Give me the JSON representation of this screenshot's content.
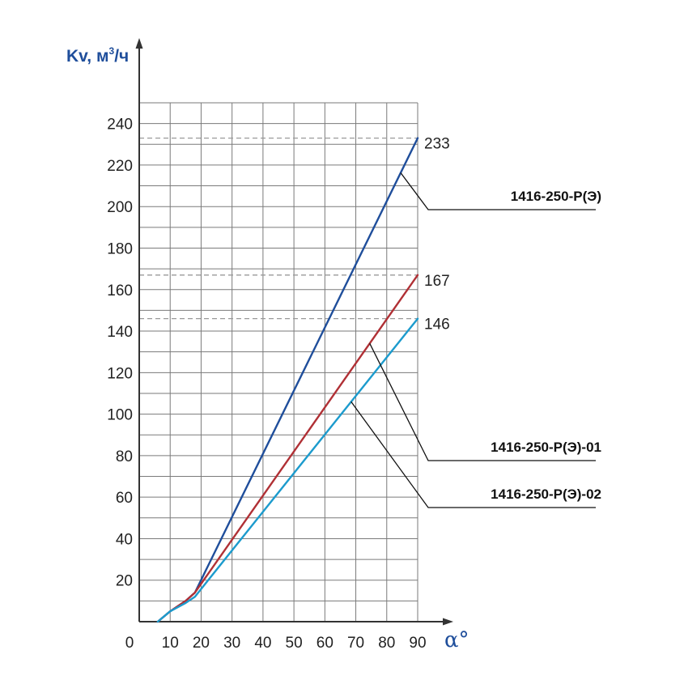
{
  "chart_data": {
    "type": "line",
    "ylabel": {
      "main": "Kv, м",
      "sup": "3",
      "tail": "/ч"
    },
    "xlabel": "α°",
    "x_origin_label": "0",
    "xlim": [
      0,
      90
    ],
    "ylim": [
      0,
      250
    ],
    "grid": true,
    "x_ticks": [
      10,
      20,
      30,
      40,
      50,
      60,
      70,
      80,
      90
    ],
    "y_ticks": [
      20,
      40,
      60,
      80,
      100,
      120,
      140,
      160,
      180,
      200,
      220,
      240
    ],
    "series": [
      {
        "name": "1416-250-Р(Э)",
        "color": "#1f4e9b",
        "end_label": "233",
        "x": [
          6,
          10,
          15,
          18,
          90
        ],
        "y": [
          0,
          5,
          10,
          14,
          233
        ]
      },
      {
        "name": "1416-250-Р(Э)-01",
        "color": "#b03035",
        "end_label": "167",
        "x": [
          6,
          10,
          15,
          18,
          90
        ],
        "y": [
          0,
          5,
          10,
          14,
          167
        ]
      },
      {
        "name": "1416-250-Р(Э)-02",
        "color": "#1c9bcd",
        "end_label": "146",
        "x": [
          6,
          10,
          15,
          18,
          90
        ],
        "y": [
          0,
          5,
          9,
          12,
          146
        ]
      }
    ],
    "reference_lines": [
      233,
      167,
      146
    ],
    "colors": {
      "axis": "#333333",
      "grid": "#7a7a7a",
      "reference": "#999999",
      "title": "#1f4e9b"
    }
  }
}
